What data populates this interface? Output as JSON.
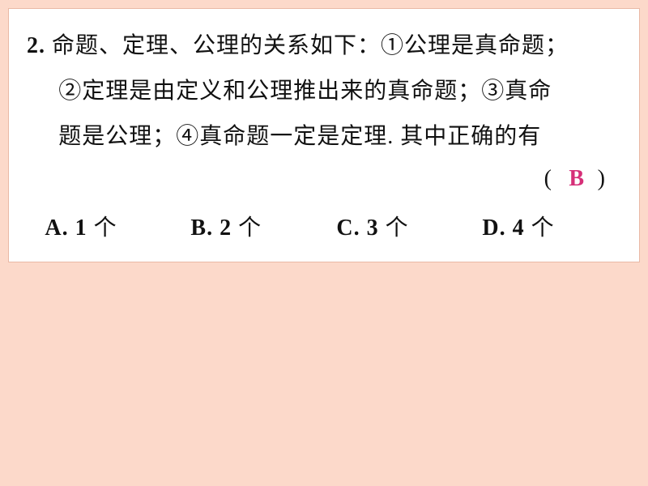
{
  "background_color": "#fcd9ca",
  "card_background": "#ffffff",
  "text_color": "#111111",
  "answer_color": "#d62f78",
  "fontsize_pt": 21,
  "line_height": 2.0,
  "question": {
    "number": "2.",
    "line1_after_num": "命题、定理、公理的关系如下：①公理是真命题；",
    "line2": "②定理是由定义和公理推出来的真命题；③真命",
    "line3": "题是公理；④真命题一定是定理. 其中正确的有"
  },
  "answer": {
    "open": "(",
    "letter": "B",
    "close": ")"
  },
  "options": {
    "a_prefix": "A.",
    "a_value": "1",
    "a_unit": "个",
    "b_prefix": "B.",
    "b_value": "2",
    "b_unit": "个",
    "c_prefix": "C.",
    "c_value": "3",
    "c_unit": "个",
    "d_prefix": "D.",
    "d_value": "4",
    "d_unit": "个"
  }
}
